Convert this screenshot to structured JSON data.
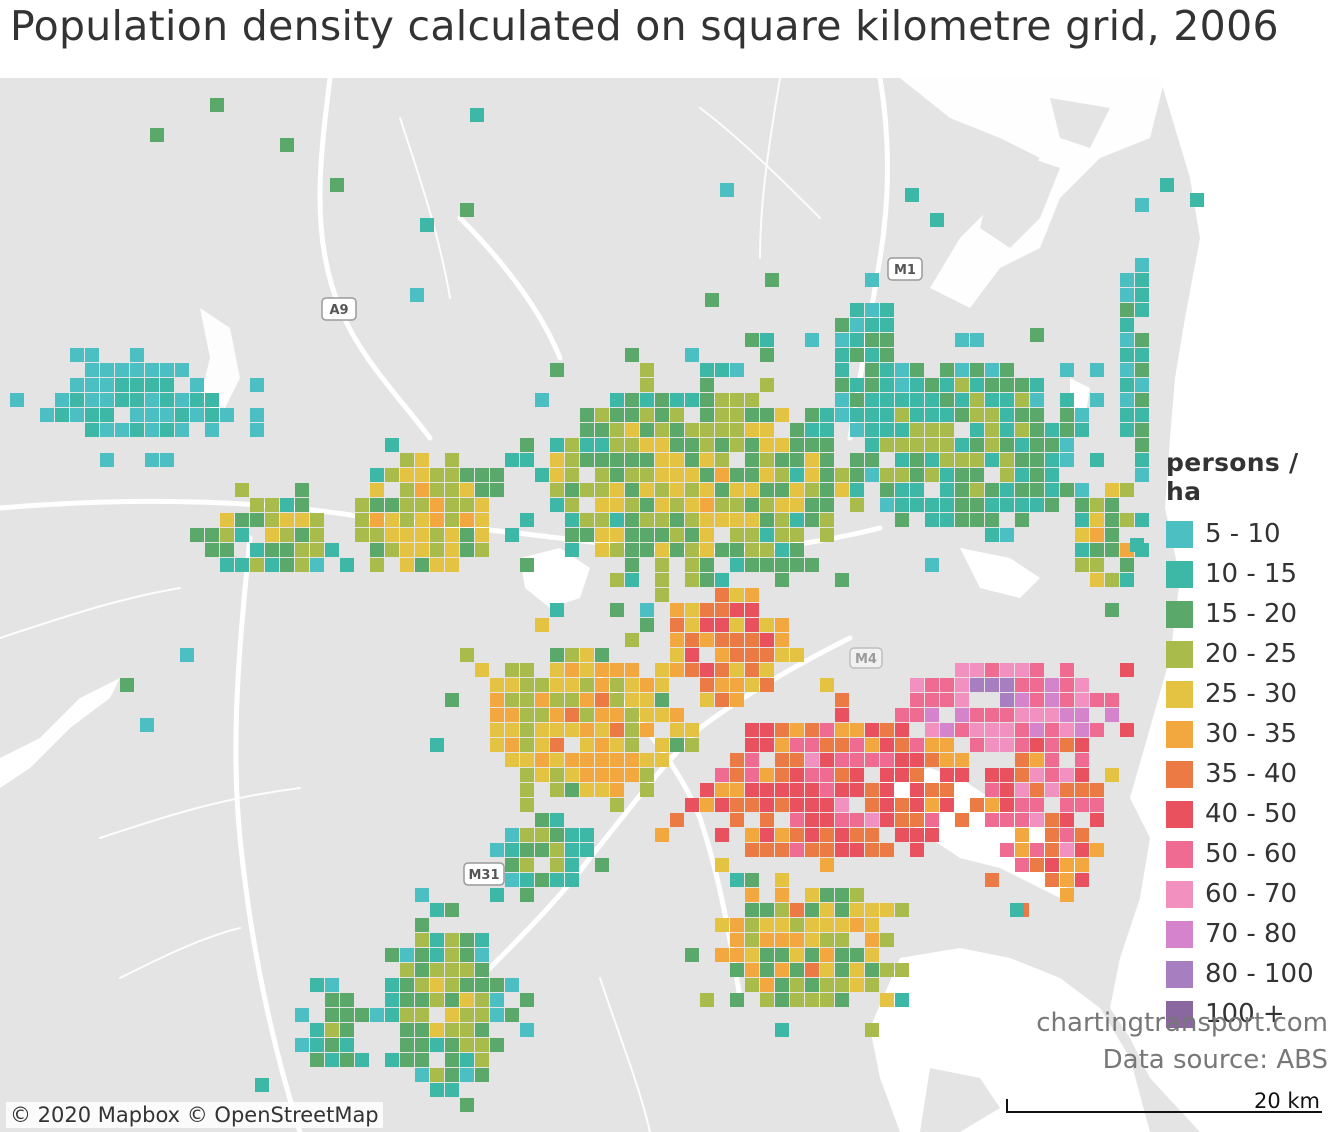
{
  "title": "Population density calculated on square kilometre grid, 2006",
  "legend": {
    "title": "persons / ha",
    "items": [
      {
        "label": "5 - 10",
        "color": "#4cbfc2"
      },
      {
        "label": "10 - 15",
        "color": "#3db8a6"
      },
      {
        "label": "15 - 20",
        "color": "#5aa86a"
      },
      {
        "label": "20 - 25",
        "color": "#a9bc4b"
      },
      {
        "label": "25 - 30",
        "color": "#e3c341"
      },
      {
        "label": "30 - 35",
        "color": "#f2a83e"
      },
      {
        "label": "35 - 40",
        "color": "#ec7a45"
      },
      {
        "label": "40 - 50",
        "color": "#e9515f"
      },
      {
        "label": "50 - 60",
        "color": "#f06b92"
      },
      {
        "label": "60 - 70",
        "color": "#f291c0"
      },
      {
        "label": "70 - 80",
        "color": "#d584cb"
      },
      {
        "label": "80 - 100",
        "color": "#a77ec0"
      },
      {
        "label": "100 +",
        "color": "#8a689f"
      }
    ]
  },
  "roads": [
    "A9",
    "M1",
    "M31",
    "M4"
  ],
  "source_site": "chartingtransport.com",
  "data_source": "Data source: ABS",
  "attribution": "© 2020 Mapbox © OpenStreetMap",
  "scale_label": "20 km"
}
